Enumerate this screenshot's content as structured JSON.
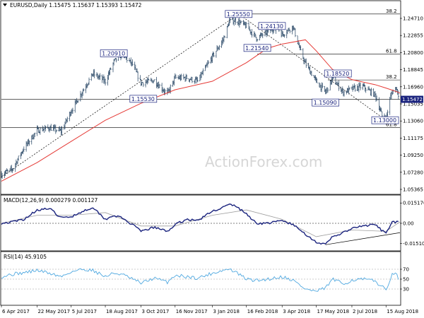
{
  "colors": {
    "price_bar": "#1f3f5f",
    "ma": "#e53935",
    "macd": "#1a237e",
    "signal": "#9e9e9e",
    "rsi": "#4fa8e0",
    "current_box": "#1a237e",
    "level_box": "#1a237e"
  },
  "watermark": "ActionForex.com",
  "chart_data": [
    {
      "type": "candlestick",
      "header": "EURUSD,Daily 1.15475 1.15637 1.15393 1.15472",
      "y_ticks": [
        "1.24710",
        "1.22855",
        "1.20800",
        "1.18845",
        "1.16960",
        "1.15035",
        "1.13060",
        "1.11175",
        "1.09250",
        "1.07280",
        "1.05365"
      ],
      "ylim": [
        1.045,
        1.262
      ],
      "current_price": "1.15472",
      "x_start": "2017-04-06",
      "x_ticks": [
        "6 Apr 2017",
        "22 May 2017",
        "5 Jul 2017",
        "18 Aug 2017",
        "3 Oct 2017",
        "16 Nov 2017",
        "3 Jan 2018",
        "16 Feb 2018",
        "3 Apr 2018",
        "17 May 2018",
        "2 Jul 2018",
        "15 Aug 2018"
      ],
      "x_tick_dates": [
        "2017-04-06",
        "2017-05-22",
        "2017-07-05",
        "2017-08-18",
        "2017-10-03",
        "2017-11-16",
        "2018-01-03",
        "2018-02-16",
        "2018-04-03",
        "2018-05-17",
        "2018-07-02",
        "2018-08-15"
      ],
      "x_end": "2018-09-02",
      "close_series": {
        "dates": [
          "2017-04-06",
          "2017-04-20",
          "2017-05-05",
          "2017-05-22",
          "2017-06-07",
          "2017-06-22",
          "2017-07-05",
          "2017-07-20",
          "2017-08-02",
          "2017-08-18",
          "2017-08-29",
          "2017-09-08",
          "2017-09-22",
          "2017-10-03",
          "2017-10-20",
          "2017-11-06",
          "2017-11-16",
          "2017-12-01",
          "2017-12-15",
          "2018-01-03",
          "2018-01-17",
          "2018-01-25",
          "2018-02-02",
          "2018-02-16",
          "2018-03-01",
          "2018-03-15",
          "2018-03-27",
          "2018-04-03",
          "2018-04-17",
          "2018-04-26",
          "2018-05-03",
          "2018-05-17",
          "2018-05-29",
          "2018-06-07",
          "2018-06-21",
          "2018-07-02",
          "2018-07-16",
          "2018-08-01",
          "2018-08-10",
          "2018-08-15",
          "2018-08-22",
          "2018-08-28",
          "2018-09-02"
        ],
        "values": [
          1.066,
          1.072,
          1.097,
          1.118,
          1.121,
          1.117,
          1.141,
          1.165,
          1.185,
          1.176,
          1.199,
          1.208,
          1.196,
          1.174,
          1.177,
          1.161,
          1.18,
          1.18,
          1.176,
          1.205,
          1.225,
          1.247,
          1.248,
          1.241,
          1.227,
          1.234,
          1.241,
          1.231,
          1.241,
          1.213,
          1.197,
          1.176,
          1.163,
          1.179,
          1.163,
          1.167,
          1.17,
          1.16,
          1.135,
          1.132,
          1.162,
          1.169,
          1.155
        ]
      },
      "moving_average": {
        "dates": [
          "2017-04-06",
          "2017-05-22",
          "2017-07-05",
          "2017-08-18",
          "2017-10-03",
          "2017-11-16",
          "2018-01-03",
          "2018-02-16",
          "2018-03-15",
          "2018-04-03",
          "2018-05-03",
          "2018-05-17",
          "2018-06-07",
          "2018-07-02",
          "2018-08-01",
          "2018-08-15",
          "2018-08-28",
          "2018-09-02"
        ],
        "values": [
          1.058,
          1.08,
          1.105,
          1.13,
          1.15,
          1.166,
          1.176,
          1.198,
          1.215,
          1.22,
          1.225,
          1.212,
          1.19,
          1.178,
          1.172,
          1.168,
          1.164,
          1.162
        ]
      },
      "horizontal_levels": [
        {
          "value": 1.2555,
          "label": "38.2"
        },
        {
          "value": 1.2083,
          "label": "61.8"
        },
        {
          "value": 1.1776,
          "label": "38.2"
        },
        {
          "value": 1.1215,
          "label": "61.8"
        },
        {
          "value": 1.15472,
          "label": ""
        }
      ],
      "price_labels": [
        {
          "text": "1.25550",
          "date": "2018-02-06",
          "value": 1.2555
        },
        {
          "text": "1.24130",
          "date": "2018-03-21",
          "value": 1.2413
        },
        {
          "text": "1.21540",
          "date": "2018-03-02",
          "value": 1.2154
        },
        {
          "text": "1.20910",
          "date": "2017-08-29",
          "value": 1.2091
        },
        {
          "text": "1.15530",
          "date": "2017-10-06",
          "value": 1.1553
        },
        {
          "text": "1.18520",
          "date": "2018-06-14",
          "value": 1.1852
        },
        {
          "text": "1.15090",
          "date": "2018-05-29",
          "value": 1.1509
        },
        {
          "text": "1.13000",
          "date": "2018-08-15",
          "value": 1.13
        }
      ],
      "trendlines": [
        {
          "from": {
            "date": "2017-04-06",
            "value": 1.063
          },
          "to": {
            "date": "2018-02-06",
            "value": 1.2555
          }
        },
        {
          "from": {
            "date": "2018-02-06",
            "value": 1.2555
          },
          "to": {
            "date": "2018-08-15",
            "value": 1.13
          }
        }
      ]
    },
    {
      "type": "line",
      "title": "MACD(12,26,9) 0.000279 0.001127",
      "y_ticks": [
        "0.015176",
        "0.00",
        "-0.015109"
      ],
      "ylim": [
        -0.019,
        0.019
      ],
      "series": [
        {
          "name": "MACD",
          "dates": [
            "2017-04-06",
            "2017-04-20",
            "2017-05-05",
            "2017-05-22",
            "2017-06-07",
            "2017-06-22",
            "2017-07-05",
            "2017-07-20",
            "2017-08-02",
            "2017-08-18",
            "2017-08-29",
            "2017-09-08",
            "2017-09-22",
            "2017-10-03",
            "2017-10-20",
            "2017-11-06",
            "2017-11-16",
            "2017-12-01",
            "2017-12-15",
            "2018-01-03",
            "2018-01-17",
            "2018-01-25",
            "2018-02-02",
            "2018-02-16",
            "2018-03-01",
            "2018-03-15",
            "2018-04-03",
            "2018-04-17",
            "2018-05-03",
            "2018-05-17",
            "2018-05-29",
            "2018-06-07",
            "2018-06-21",
            "2018-07-02",
            "2018-07-16",
            "2018-08-01",
            "2018-08-15",
            "2018-08-22",
            "2018-08-28",
            "2018-09-02"
          ],
          "values": [
            0.0,
            0.001,
            0.003,
            0.01,
            0.011,
            0.004,
            0.005,
            0.009,
            0.012,
            0.003,
            0.006,
            0.004,
            -0.001,
            -0.006,
            -0.003,
            -0.006,
            -0.001,
            0.003,
            0.002,
            0.009,
            0.012,
            0.014,
            0.013,
            0.007,
            0.0,
            0.0,
            0.002,
            -0.001,
            -0.008,
            -0.014,
            -0.016,
            -0.01,
            -0.007,
            -0.004,
            -0.002,
            -0.001,
            -0.008,
            0.001,
            0.001,
            0.0003
          ]
        },
        {
          "name": "Signal",
          "dates": [
            "2017-04-06",
            "2017-05-22",
            "2017-07-05",
            "2017-08-18",
            "2017-10-03",
            "2017-11-16",
            "2018-01-03",
            "2018-02-16",
            "2018-04-03",
            "2018-05-17",
            "2018-07-02",
            "2018-08-15",
            "2018-09-02"
          ],
          "values": [
            0.0,
            0.006,
            0.006,
            0.008,
            -0.002,
            -0.002,
            0.006,
            0.01,
            0.003,
            -0.01,
            -0.005,
            -0.006,
            0.0011
          ]
        }
      ],
      "trendlines": [
        {
          "from": {
            "date": "2018-05-29",
            "value": -0.016
          },
          "to": {
            "date": "2018-09-02",
            "value": -0.007
          }
        }
      ]
    },
    {
      "type": "line",
      "title": "RSI(14) 45.9105",
      "y_ticks": [
        "70",
        "50",
        "30"
      ],
      "ylim": [
        0,
        100
      ],
      "series": [
        {
          "name": "RSI",
          "dates": [
            "2017-04-06",
            "2017-04-20",
            "2017-05-05",
            "2017-05-22",
            "2017-06-07",
            "2017-06-22",
            "2017-07-05",
            "2017-07-20",
            "2017-08-02",
            "2017-08-18",
            "2017-08-29",
            "2017-09-08",
            "2017-09-22",
            "2017-10-03",
            "2017-10-20",
            "2017-11-06",
            "2017-11-16",
            "2017-12-01",
            "2017-12-15",
            "2018-01-03",
            "2018-01-17",
            "2018-01-25",
            "2018-02-02",
            "2018-02-16",
            "2018-03-01",
            "2018-03-15",
            "2018-04-03",
            "2018-04-17",
            "2018-05-03",
            "2018-05-17",
            "2018-05-29",
            "2018-06-07",
            "2018-06-21",
            "2018-07-02",
            "2018-07-16",
            "2018-08-01",
            "2018-08-15",
            "2018-08-22",
            "2018-08-28",
            "2018-09-02"
          ],
          "values": [
            55,
            60,
            63,
            68,
            62,
            55,
            65,
            70,
            68,
            55,
            62,
            60,
            50,
            42,
            52,
            44,
            58,
            55,
            52,
            62,
            68,
            70,
            64,
            50,
            47,
            50,
            55,
            48,
            30,
            25,
            32,
            50,
            40,
            48,
            50,
            46,
            28,
            58,
            60,
            46
          ]
        }
      ]
    }
  ]
}
